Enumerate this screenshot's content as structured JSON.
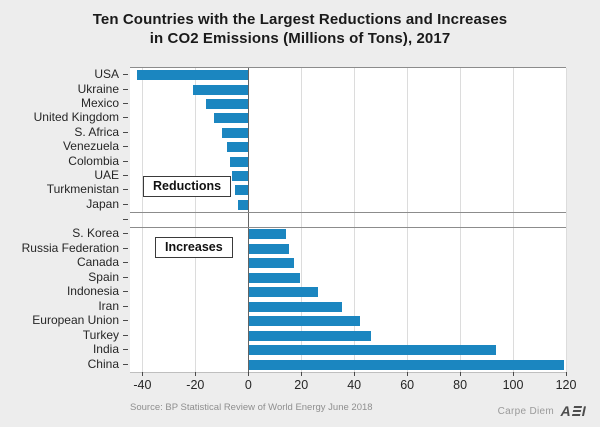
{
  "title": {
    "line1": "Ten Countries with the Largest Reductions and Increases",
    "line2": "in CO2 Emissions (Millions of Tons), 2017"
  },
  "annotations": {
    "reductions_label": "Reductions",
    "increases_label": "Increases"
  },
  "source_note": "Source: BP Statistical Review of World Energy June 2018",
  "footer": {
    "credit": "Carpe Diem",
    "logo_text": "AEI"
  },
  "colors": {
    "bar": "#1b86c0",
    "background": "#ededed",
    "plot_background": "#ffffff",
    "gridline": "#dcdcdc",
    "zero_line": "#646464",
    "panel_border": "#8c8c8c"
  },
  "chart_data": {
    "type": "bar",
    "orientation": "horizontal",
    "title": "Ten Countries with the Largest Reductions and Increases in CO2 Emissions (Millions of Tons), 2017",
    "xlabel": "",
    "ylabel": "",
    "unit": "millions of tons of CO2",
    "xlim": [
      -45,
      120
    ],
    "x_ticks": [
      -40,
      -20,
      0,
      20,
      40,
      60,
      80,
      100,
      120
    ],
    "grid": true,
    "legend": "none",
    "panels": [
      {
        "label": "Reductions",
        "categories": [
          "USA",
          "Ukraine",
          "Mexico",
          "United Kingdom",
          "S. Africa",
          "Venezuela",
          "Colombia",
          "UAE",
          "Turkmenistan",
          "Japan"
        ],
        "values": [
          -42,
          -21,
          -16,
          -13,
          -10,
          -8,
          -7,
          -6,
          -5,
          -4
        ]
      },
      {
        "label": "Increases",
        "categories": [
          "S. Korea",
          "Russia Federation",
          "Canada",
          "Spain",
          "Indonesia",
          "Iran",
          "European Union",
          "Turkey",
          "India",
          "China"
        ],
        "values": [
          14,
          15,
          17,
          19,
          26,
          35,
          42,
          46,
          93,
          119
        ]
      }
    ]
  }
}
